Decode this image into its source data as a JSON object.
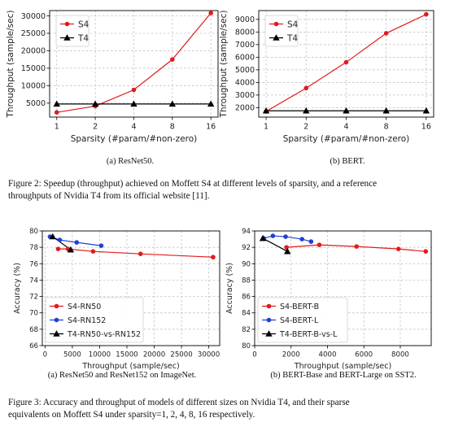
{
  "figure2": {
    "caption_line1": "Figure 2: Speedup (throughput) achieved on Moffett S4 at different levels of sparsity, and a reference",
    "caption_line2": "throughputs of Nvidia T4 from its official website [11]."
  },
  "figure3": {
    "caption_line1": "Figure 3: Accuracy and throughput of models of different sizes on Nvidia T4, and their sparse",
    "caption_line2": "equivalents on Moffett S4 under sparsity=1, 2, 4, 8, 16 respectively."
  },
  "colors": {
    "s4": "#e31a1c",
    "t4": "#000000",
    "blue": "#1f3fd6"
  },
  "chart_data": [
    {
      "id": "resnet",
      "type": "line",
      "subcaption": "(a) ResNet50.",
      "xlabel": "Sparsity  (#param/#non-zero)",
      "ylabel": "Throughput (sample/sec)",
      "x_scale": "log2",
      "x_ticks": [
        1,
        2,
        4,
        8,
        16
      ],
      "x_tick_labels": [
        "1",
        "2",
        "4",
        "8",
        "16"
      ],
      "xlim": [
        0.88,
        18.2
      ],
      "ylim": [
        1000,
        31500
      ],
      "y_ticks": [
        5000,
        10000,
        15000,
        20000,
        25000,
        30000
      ],
      "y_tick_labels": [
        "5000",
        "10000",
        "15000",
        "20000",
        "25000",
        "30000"
      ],
      "grid": true,
      "legend_position": "top-left",
      "series": [
        {
          "name": "S4",
          "color": "#e31a1c",
          "marker": "circle",
          "x": [
            1,
            2,
            4,
            8,
            16
          ],
          "y": [
            2350,
            4150,
            8800,
            17500,
            30800
          ]
        },
        {
          "name": "T4",
          "color": "#000000",
          "marker": "triangle",
          "x": [
            1,
            2,
            4,
            8,
            16
          ],
          "y": [
            4750,
            4750,
            4750,
            4750,
            4750
          ]
        }
      ]
    },
    {
      "id": "bert",
      "type": "line",
      "subcaption": "(b) BERT.",
      "xlabel": "Sparsity  (#param/#non-zero)",
      "ylabel": "Throughput (sample/sec)",
      "x_scale": "log2",
      "x_ticks": [
        1,
        2,
        4,
        8,
        16
      ],
      "x_tick_labels": [
        "1",
        "2",
        "4",
        "8",
        "16"
      ],
      "xlim": [
        0.88,
        18.2
      ],
      "ylim": [
        1250,
        9700
      ],
      "y_ticks": [
        2000,
        3000,
        4000,
        5000,
        6000,
        7000,
        8000,
        9000
      ],
      "y_tick_labels": [
        "2000",
        "3000",
        "4000",
        "5000",
        "6000",
        "7000",
        "8000",
        "9000"
      ],
      "grid": true,
      "legend_position": "top-left",
      "series": [
        {
          "name": "S4",
          "color": "#e31a1c",
          "marker": "circle",
          "x": [
            1,
            2,
            4,
            8,
            16
          ],
          "y": [
            1700,
            3550,
            5600,
            7900,
            9400
          ]
        },
        {
          "name": "T4",
          "color": "#000000",
          "marker": "triangle",
          "x": [
            1,
            2,
            4,
            8,
            16
          ],
          "y": [
            1750,
            1750,
            1750,
            1750,
            1750
          ]
        }
      ]
    },
    {
      "id": "imagenet",
      "type": "line",
      "subcaption": "(a) ResNet50 and ResNet152 on ImageNet.",
      "xlabel": "Throughput (sample/sec)",
      "ylabel": "Accuracy (%)",
      "x_scale": "linear",
      "xlim": [
        -500,
        32000
      ],
      "ylim": [
        66,
        80
      ],
      "x_ticks": [
        0,
        5000,
        10000,
        15000,
        20000,
        25000,
        30000
      ],
      "x_tick_labels": [
        "0",
        "5000",
        "10000",
        "15000",
        "20000",
        "25000",
        "30000"
      ],
      "y_ticks": [
        66,
        68,
        70,
        72,
        74,
        76,
        78,
        80
      ],
      "y_tick_labels": [
        "66",
        "68",
        "70",
        "72",
        "74",
        "76",
        "78",
        "80"
      ],
      "grid": true,
      "legend_position": "lower-left",
      "series": [
        {
          "name": "S4-RN50",
          "color": "#e31a1c",
          "marker": "circle",
          "x": [
            2400,
            4200,
            8800,
            17500,
            30800
          ],
          "y": [
            77.8,
            77.8,
            77.5,
            77.2,
            76.8
          ]
        },
        {
          "name": "S4-RN152",
          "color": "#1f3fd6",
          "marker": "circle",
          "x": [
            900,
            2700,
            5800,
            10300
          ],
          "y": [
            79.3,
            78.9,
            78.6,
            78.2
          ]
        },
        {
          "name": "T4-RN50-vs-RN152",
          "color": "#000000",
          "marker": "triangle",
          "x": [
            1400,
            4700
          ],
          "y": [
            79.3,
            77.7
          ]
        }
      ]
    },
    {
      "id": "sst2",
      "type": "line",
      "subcaption": "(b) BERT-Base and BERT-Large on SST2.",
      "xlabel": "Throughput (sample/sec)",
      "ylabel": "Accuracy (%)",
      "x_scale": "linear",
      "xlim": [
        0,
        9700
      ],
      "ylim": [
        80,
        94
      ],
      "x_ticks": [
        0,
        2000,
        4000,
        6000,
        8000
      ],
      "x_tick_labels": [
        "0",
        "2000",
        "4000",
        "6000",
        "8000"
      ],
      "y_ticks": [
        80,
        82,
        84,
        86,
        88,
        90,
        92,
        94
      ],
      "y_tick_labels": [
        "80",
        "82",
        "84",
        "86",
        "88",
        "90",
        "92",
        "94"
      ],
      "grid": true,
      "legend_position": "lower-left",
      "series": [
        {
          "name": "S4-BERT-B",
          "color": "#e31a1c",
          "marker": "circle",
          "x": [
            1750,
            3550,
            5600,
            7900,
            9400
          ],
          "y": [
            92.0,
            92.3,
            92.1,
            91.8,
            91.5
          ]
        },
        {
          "name": "S4-BERT-L",
          "color": "#1f3fd6",
          "marker": "circle",
          "x": [
            500,
            1000,
            1700,
            2600,
            3100
          ],
          "y": [
            93.1,
            93.4,
            93.3,
            93.0,
            92.7
          ]
        },
        {
          "name": "T4-BERT-B-vs-L",
          "color": "#000000",
          "marker": "triangle",
          "x": [
            450,
            1800
          ],
          "y": [
            93.1,
            91.5
          ]
        }
      ]
    }
  ]
}
